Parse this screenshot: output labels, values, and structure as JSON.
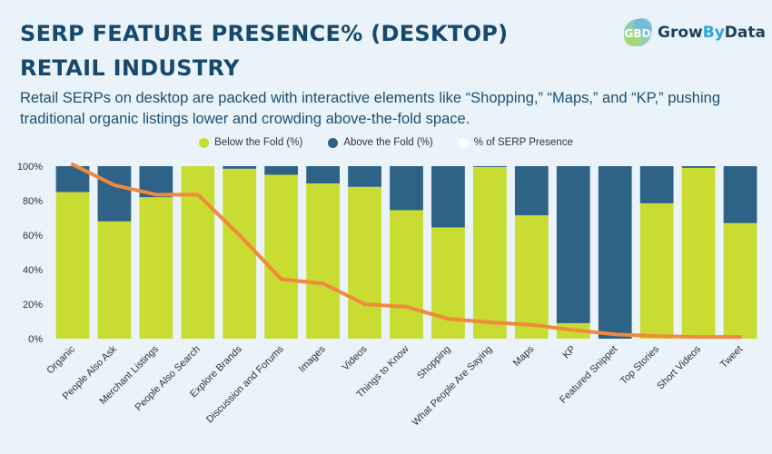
{
  "header": {
    "title_line1": "SERP FEATURE PRESENCE% (DESKTOP)",
    "title_line2": "RETAIL INDUSTRY",
    "subtitle": "Retail SERPs on desktop are packed with interactive elements like “Shopping,” “Maps,” and “KP,” pushing traditional organic listings lower and crowding above-the-fold space."
  },
  "logo": {
    "text_grow": "Grow",
    "text_by": "By",
    "text_data": "Data",
    "mark_icon": "growbydata-logo-icon"
  },
  "colors": {
    "below": "#c8dc32",
    "above": "#2f6287",
    "line": "#f08a3c",
    "title": "#17496c"
  },
  "chart_data": {
    "type": "bar",
    "stacked": true,
    "categories": [
      "Organic",
      "People Also Ask",
      "Merchant Listings",
      "People Also Search",
      "Explore Brands",
      "Discussion and Forums",
      "Images",
      "Videos",
      "Things to Know",
      "Shopping",
      "What People Are Saying",
      "Maps",
      "KP",
      "Featured Snippet",
      "Top Stories",
      "Short Videos",
      "Tweet"
    ],
    "series": [
      {
        "name": "Below the Fold (%)",
        "values": [
          85,
          68,
          82,
          100,
          98.5,
          95,
          90,
          88,
          74.5,
          64.5,
          99.5,
          71.5,
          9,
          0,
          78.5,
          99,
          67
        ]
      },
      {
        "name": "Above the Fold (%)",
        "values": [
          15,
          32,
          18,
          0,
          1.5,
          5,
          10,
          12,
          25.5,
          35.5,
          0.5,
          28.5,
          91,
          100,
          21.5,
          1,
          33
        ]
      },
      {
        "name": "% of SERP Presence",
        "type": "line",
        "values": [
          101,
          89,
          83.5,
          83.5,
          60,
          34.5,
          32,
          20,
          18.5,
          11.5,
          9.5,
          8,
          5,
          2.5,
          1.5,
          1,
          1
        ]
      }
    ],
    "yticks": [
      "0%",
      "20%",
      "40%",
      "60%",
      "80%",
      "100%"
    ],
    "ylim": [
      0,
      100
    ],
    "legend": [
      "Below the Fold (%)",
      "Above the Fold (%)",
      "% of SERP Presence"
    ]
  }
}
